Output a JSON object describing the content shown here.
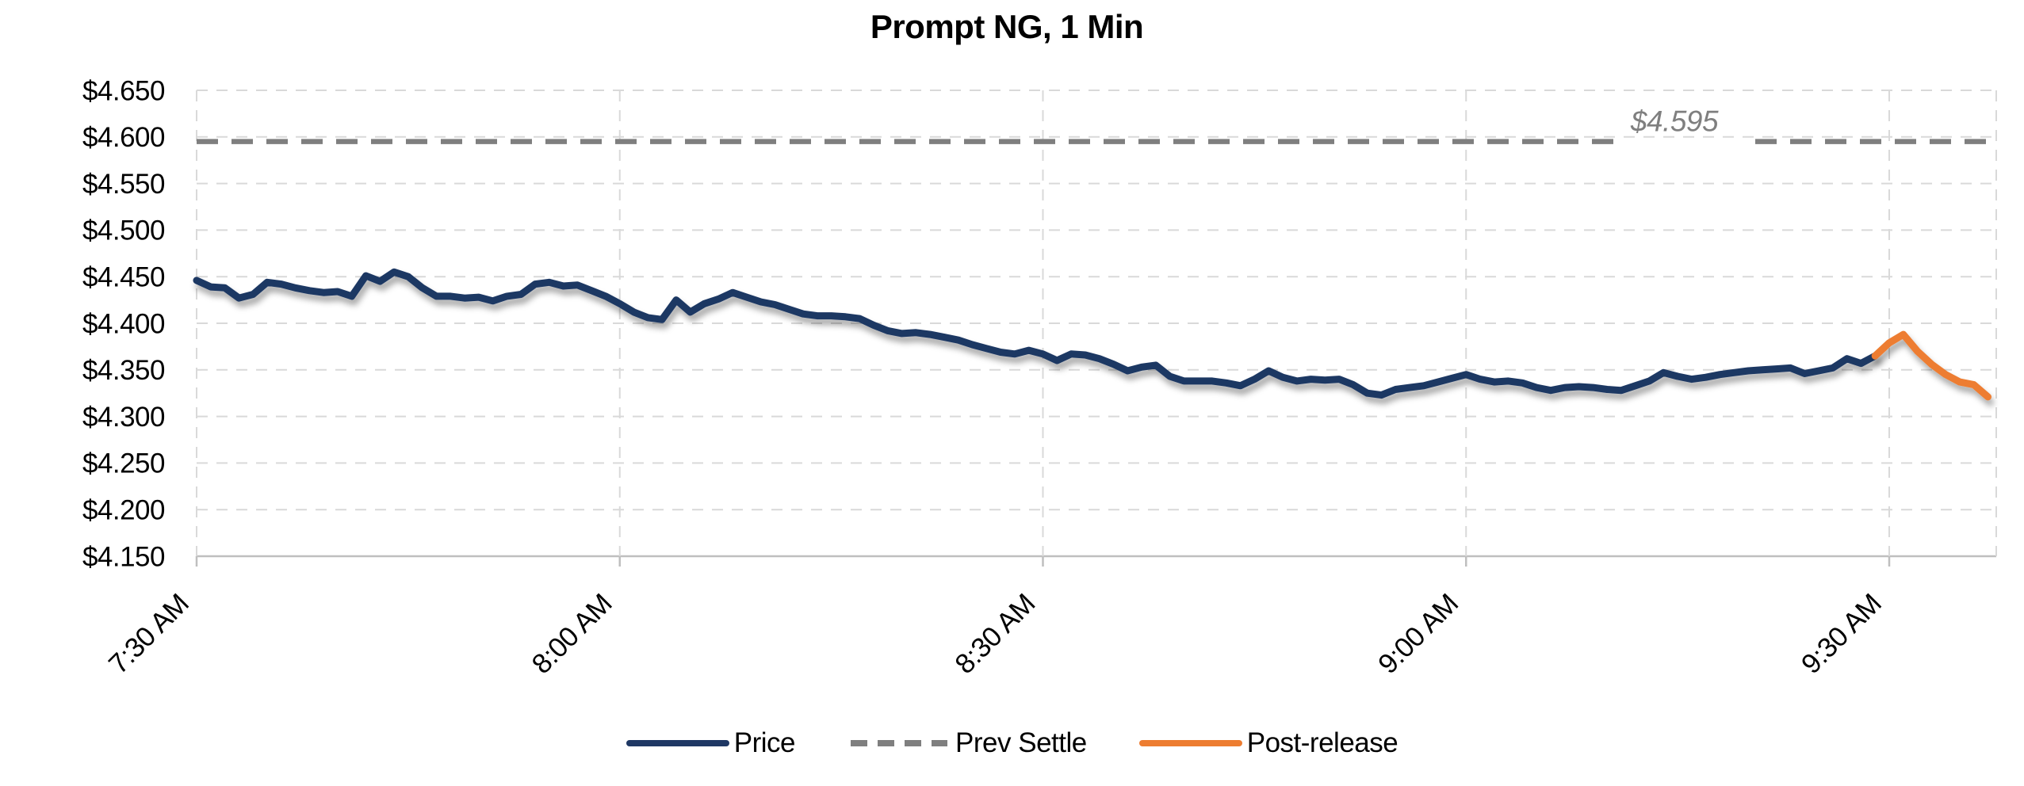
{
  "title": "Prompt NG, 1 Min",
  "legend": [
    {
      "label": "Price",
      "color": "#1F3864",
      "style": "solid"
    },
    {
      "label": "Prev Settle",
      "color": "#7F7F7F",
      "style": "dashed"
    },
    {
      "label": "Post-release",
      "color": "#ED7D31",
      "style": "solid"
    }
  ],
  "chart_data": {
    "type": "line",
    "title": "Prompt NG, 1 Min",
    "grid": true,
    "legend_position": "bottom",
    "x_axis": {
      "tick_labels": [
        "7:30 AM",
        "8:00 AM",
        "8:30 AM",
        "9:00 AM",
        "9:30 AM"
      ],
      "tick_minutes": [
        0,
        30,
        60,
        90,
        120
      ],
      "minutes_per_point": 1
    },
    "y_axis": {
      "tick_labels": [
        "$4.650",
        "$4.600",
        "$4.550",
        "$4.500",
        "$4.450",
        "$4.400",
        "$4.350",
        "$4.300",
        "$4.250",
        "$4.200",
        "$4.150"
      ],
      "min": 4.15,
      "max": 4.65,
      "step": 0.05,
      "format": "$0.000"
    },
    "series": [
      {
        "name": "Price",
        "color": "#1F3864",
        "style": "solid",
        "start_minute": 0,
        "values": [
          4.446,
          4.439,
          4.438,
          4.427,
          4.431,
          4.444,
          4.442,
          4.438,
          4.435,
          4.433,
          4.434,
          4.429,
          4.451,
          4.445,
          4.455,
          4.45,
          4.438,
          4.429,
          4.429,
          4.427,
          4.428,
          4.424,
          4.429,
          4.431,
          4.442,
          4.444,
          4.44,
          4.441,
          4.435,
          4.429,
          4.421,
          4.412,
          4.406,
          4.404,
          4.425,
          4.412,
          4.421,
          4.426,
          4.433,
          4.428,
          4.423,
          4.42,
          4.415,
          4.41,
          4.408,
          4.408,
          4.407,
          4.405,
          4.398,
          4.392,
          4.389,
          4.39,
          4.388,
          4.385,
          4.382,
          4.377,
          4.373,
          4.369,
          4.367,
          4.371,
          4.367,
          4.36,
          4.367,
          4.366,
          4.362,
          4.356,
          4.349,
          4.353,
          4.355,
          4.343,
          4.338,
          4.338,
          4.338,
          4.336,
          4.333,
          4.34,
          4.349,
          4.342,
          4.338,
          4.34,
          4.339,
          4.34,
          4.334,
          4.325,
          4.323,
          4.329,
          4.331,
          4.333,
          4.337,
          4.341,
          4.345,
          4.34,
          4.337,
          4.338,
          4.336,
          4.331,
          4.328,
          4.331,
          4.332,
          4.331,
          4.329,
          4.328,
          4.333,
          4.338,
          4.347,
          4.343,
          4.34,
          4.342,
          4.345,
          4.347,
          4.349,
          4.35,
          4.351,
          4.352,
          4.346,
          4.349,
          4.352,
          4.362,
          4.357,
          4.365
        ]
      },
      {
        "name": "Prev Settle",
        "color": "#7F7F7F",
        "style": "dashed",
        "value": 4.595,
        "label": "$4.595"
      },
      {
        "name": "Post-release",
        "color": "#ED7D31",
        "style": "solid",
        "start_minute": 119,
        "values": [
          4.365,
          4.379,
          4.388,
          4.37,
          4.356,
          4.345,
          4.337,
          4.334,
          4.321
        ]
      }
    ]
  }
}
